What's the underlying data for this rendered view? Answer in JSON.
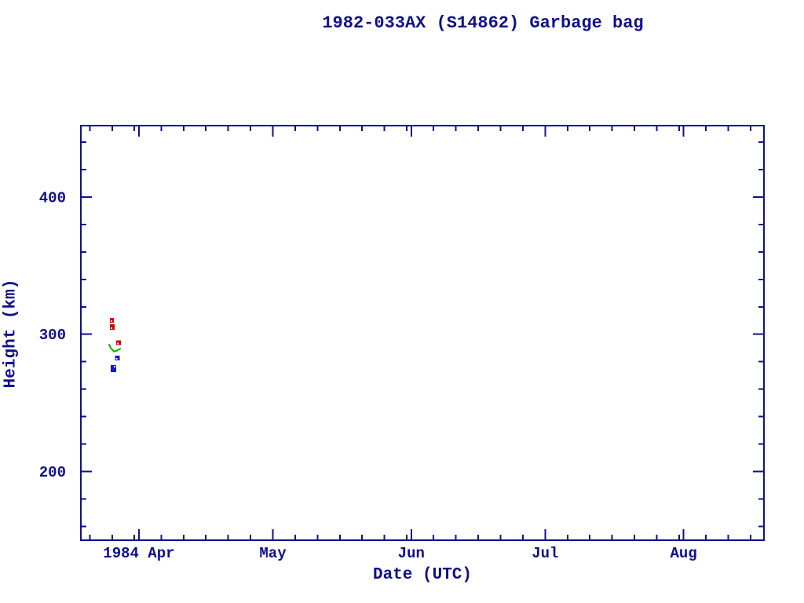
{
  "colors": {
    "axis_and_text": "#10108c",
    "background": "#ffffff",
    "red_marker": "#d40000",
    "green_line": "#00b400",
    "blue_marker": "#1717d2"
  },
  "chart_data": {
    "type": "scatter",
    "title": "1982-033AX (S14862) Garbage bag",
    "xlabel": "Date (UTC)",
    "ylabel": "Height (km)",
    "legend": "none",
    "grid": "off",
    "x_axis": {
      "unit": "date",
      "left_edge_date": "1984 Mar 19",
      "right_edge_date": "1984 Aug 19",
      "days_span": 153,
      "major_ticks": [
        {
          "day": 13,
          "label": "1984 Apr"
        },
        {
          "day": 43,
          "label": "May"
        },
        {
          "day": 74,
          "label": "Jun"
        },
        {
          "day": 104,
          "label": "Jul"
        },
        {
          "day": 135,
          "label": "Aug"
        }
      ],
      "months_for_minor_ticks": [
        {
          "start_day": -18,
          "month_days": 31
        },
        {
          "start_day": 13,
          "month_days": 30
        },
        {
          "start_day": 43,
          "month_days": 31
        },
        {
          "start_day": 74,
          "month_days": 30
        },
        {
          "start_day": 104,
          "month_days": 31
        },
        {
          "start_day": 135,
          "month_days": 31
        }
      ],
      "minor_day_marks": [
        5,
        10,
        15,
        20,
        25,
        30
      ]
    },
    "y_axis": {
      "min": 150,
      "max": 452,
      "major_ticks": [
        {
          "value": 200,
          "label": "200"
        },
        {
          "value": 300,
          "label": "300"
        },
        {
          "value": 400,
          "label": "400"
        }
      ],
      "minor_min": 160,
      "minor_max": 440,
      "minor_step": 20
    },
    "series": [
      {
        "name": "red-square-points",
        "type": "scatter",
        "marker": "filled-square",
        "color": "#d40000",
        "points": [
          {
            "date": "1984 Mar 26",
            "day": 6.95,
            "height_km": 310.2,
            "w": 5,
            "h": 6,
            "notch": "lower-left"
          },
          {
            "date": "1984 Mar 26",
            "day": 7.03,
            "height_km": 305.3,
            "w": 6,
            "h": 7,
            "notch": "lower-left"
          },
          {
            "date": "1984 Mar 27",
            "day": 8.44,
            "height_km": 293.9,
            "w": 6,
            "h": 6,
            "notch": "lower-left"
          }
        ]
      },
      {
        "name": "green-curve",
        "type": "line",
        "color": "#00b400",
        "points": [
          {
            "day": 6.35,
            "height_km": 292.4
          },
          {
            "day": 6.68,
            "height_km": 290.1
          },
          {
            "day": 7.39,
            "height_km": 287.5
          },
          {
            "day": 8.09,
            "height_km": 288.1
          },
          {
            "day": 8.79,
            "height_km": 289.5
          }
        ]
      },
      {
        "name": "blue-square-points",
        "type": "scatter",
        "marker": "filled-square",
        "color": "#1717d2",
        "points": [
          {
            "date": "1984 Mar 27",
            "day": 8.18,
            "height_km": 282.7,
            "w": 6,
            "h": 6,
            "notch": "lower-left"
          },
          {
            "date": "1984 Mar 26",
            "day": 7.3,
            "height_km": 275.0,
            "w": 7,
            "h": 9,
            "notch": "upper-right"
          }
        ]
      }
    ]
  }
}
